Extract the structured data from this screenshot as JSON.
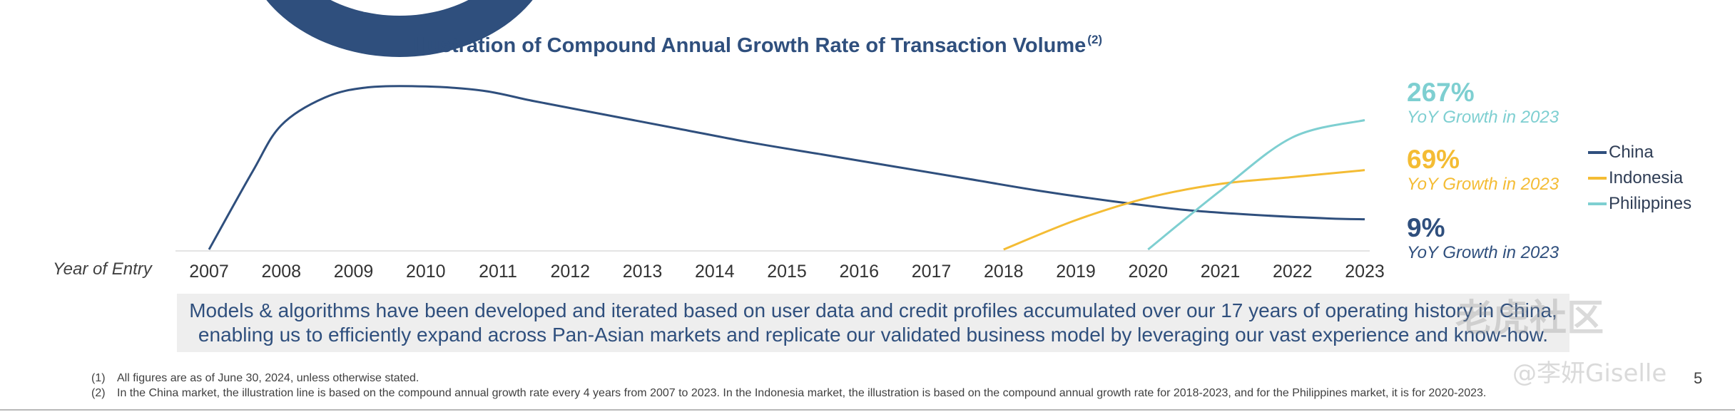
{
  "title": "Illustration of Compound Annual Growth Rate of Transaction Volume",
  "title_footnote": "(2)",
  "x_axis_label": "Year of Entry",
  "annotations": [
    {
      "percent": "267%",
      "text": "YoY Growth in 2023",
      "color": "#7ecfd1"
    },
    {
      "percent": "69%",
      "text": "YoY Growth in 2023",
      "color": "#f4bc34"
    },
    {
      "percent": "9%",
      "text": "YoY Growth in 2023",
      "color": "#2f4f7d"
    }
  ],
  "legend": [
    {
      "label": "China",
      "color": "#2f4f7d"
    },
    {
      "label": "Indonesia",
      "color": "#f4bc34"
    },
    {
      "label": "Philippines",
      "color": "#7ecfd1"
    }
  ],
  "banner_lines": [
    "Models & algorithms have been developed and iterated based on user data and credit profiles accumulated over our 17 years of operating history in China,",
    "enabling us to efficiently expand across Pan-Asian markets and replicate our validated business model by leveraging our vast experience and know-how."
  ],
  "footnotes": [
    {
      "key": "(1)",
      "text": "All figures are as of June 30, 2024, unless otherwise stated."
    },
    {
      "key": "(2)",
      "text": "In the China market, the illustration line is based on the compound annual growth rate every 4 years from 2007 to 2023. In the Indonesia market, the illustration is based on the compound annual growth rate for 2018-2023, and for the Philippines market, it is for 2020-2023."
    }
  ],
  "page_number": "5",
  "watermark": "老虎社区",
  "watermark_handle": "@李妍Giselle",
  "chart_data": {
    "type": "line",
    "categories": [
      "2007",
      "2008",
      "2009",
      "2010",
      "2011",
      "2012",
      "2013",
      "2014",
      "2015",
      "2016",
      "2017",
      "2018",
      "2019",
      "2020",
      "2021",
      "2022",
      "2023"
    ],
    "series": [
      {
        "name": "China",
        "color": "#2f4f7d",
        "x": [
          2007,
          2007.6,
          2008,
          2008.6,
          2009.2,
          2010,
          2010.8,
          2011.5,
          2012.5,
          2013.5,
          2014.5,
          2015.5,
          2016.5,
          2017.5,
          2018.5,
          2019.5,
          2020.5,
          2021.5,
          2022.5,
          2023
        ],
        "y": [
          0,
          0.45,
          0.72,
          0.88,
          0.94,
          0.945,
          0.92,
          0.86,
          0.78,
          0.7,
          0.62,
          0.55,
          0.48,
          0.41,
          0.34,
          0.28,
          0.23,
          0.2,
          0.18,
          0.175
        ]
      },
      {
        "name": "Indonesia",
        "color": "#f4bc34",
        "x": [
          2018,
          2019,
          2020,
          2021,
          2022,
          2023
        ],
        "y": [
          0,
          0.17,
          0.3,
          0.38,
          0.42,
          0.46
        ]
      },
      {
        "name": "Philippines",
        "color": "#7ecfd1",
        "x": [
          2020,
          2021,
          2022,
          2023
        ],
        "y": [
          0,
          0.34,
          0.65,
          0.75
        ]
      }
    ],
    "xlim": [
      2007,
      2023
    ],
    "ylim": [
      0,
      1
    ]
  }
}
